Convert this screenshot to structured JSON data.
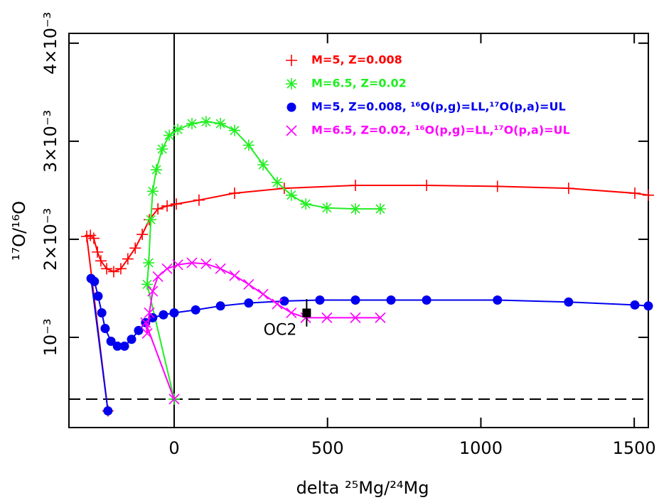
{
  "chart_data": {
    "type": "line",
    "xlabel": "delta ²⁵Mg/²⁴Mg",
    "ylabel": "¹⁷O/¹⁶O",
    "xlim": [
      -343,
      1546
    ],
    "ylim": [
      8e-05,
      0.0041
    ],
    "xticks": [
      0,
      500,
      1000,
      1500
    ],
    "yticks": [
      {
        "value": 0.001,
        "label": "10⁻³"
      },
      {
        "value": 0.002,
        "label": "2×10⁻³"
      },
      {
        "value": 0.003,
        "label": "3×10⁻³"
      },
      {
        "value": 0.004,
        "label": "4×10⁻³"
      }
    ],
    "hline": 0.00037,
    "vline": 0,
    "legend": "upper right",
    "series": [
      {
        "name": "M=5, Z=0.008",
        "color": "#ff0000",
        "marker": "plus",
        "x": [
          -216,
          -285,
          -273,
          -262,
          -250,
          -239,
          -220,
          -197,
          -174,
          -151,
          -127,
          -104,
          -81,
          -53,
          -23,
          7,
          81,
          197,
          359,
          591,
          823,
          1054,
          1286,
          1502,
          1546
        ],
        "values": [
          0.00025,
          0.00203,
          0.00204,
          0.00201,
          0.00187,
          0.00178,
          0.0017,
          0.00167,
          0.0017,
          0.0018,
          0.00191,
          0.00205,
          0.0022,
          0.00231,
          0.00234,
          0.00236,
          0.0024,
          0.00247,
          0.00252,
          0.00255,
          0.00255,
          0.00254,
          0.00252,
          0.00247,
          0.00245
        ]
      },
      {
        "name": "M=6.5, Z=0.02",
        "color": "#22ee22",
        "marker": "asterisk",
        "x": [
          0,
          -88,
          -83,
          -76,
          -70,
          -58,
          -39,
          -16,
          12,
          58,
          104,
          151,
          197,
          243,
          290,
          336,
          382,
          429,
          498,
          591,
          672
        ],
        "values": [
          0.00037,
          0.00154,
          0.00176,
          0.0022,
          0.00249,
          0.00271,
          0.00292,
          0.00306,
          0.00312,
          0.00318,
          0.0032,
          0.00318,
          0.00311,
          0.00296,
          0.00276,
          0.00258,
          0.00245,
          0.00236,
          0.00232,
          0.00231,
          0.00231
        ]
      },
      {
        "name": "M=5, Z=0.008, ¹⁶O(p,g)=LL,¹⁷O(p,a)=UL",
        "color": "#0000ee",
        "marker": "circle",
        "x": [
          -216,
          -271,
          -260,
          -248,
          -236,
          -225,
          -206,
          -185,
          -162,
          -139,
          -116,
          -93,
          -70,
          -35,
          0,
          70,
          151,
          243,
          359,
          475,
          591,
          707,
          823,
          1054,
          1286,
          1502,
          1546
        ],
        "values": [
          0.00025,
          0.0016,
          0.00157,
          0.00142,
          0.00125,
          0.00109,
          0.00096,
          0.00091,
          0.00091,
          0.00098,
          0.00107,
          0.00115,
          0.0012,
          0.00123,
          0.00125,
          0.00128,
          0.00132,
          0.00135,
          0.00137,
          0.00138,
          0.00138,
          0.00138,
          0.00138,
          0.00138,
          0.00136,
          0.00133,
          0.00132
        ]
      },
      {
        "name": "M=6.5, Z=0.02, ¹⁶O(p,g)=LL,¹⁷O(p,a)=UL",
        "color": "#ff00ff",
        "marker": "cross",
        "x": [
          0,
          -93,
          -88,
          -81,
          -70,
          -53,
          -23,
          12,
          58,
          104,
          151,
          197,
          243,
          290,
          336,
          382,
          429,
          498,
          591,
          672
        ],
        "values": [
          0.00037,
          0.00115,
          0.00104,
          0.00125,
          0.00147,
          0.00162,
          0.0017,
          0.00174,
          0.00176,
          0.00175,
          0.0017,
          0.00163,
          0.00154,
          0.00144,
          0.00134,
          0.00125,
          0.0012,
          0.0012,
          0.0012,
          0.0012
        ]
      }
    ],
    "observation": {
      "label": "OC2",
      "x": 432,
      "y": 0.00125,
      "error": 0.00014
    }
  }
}
